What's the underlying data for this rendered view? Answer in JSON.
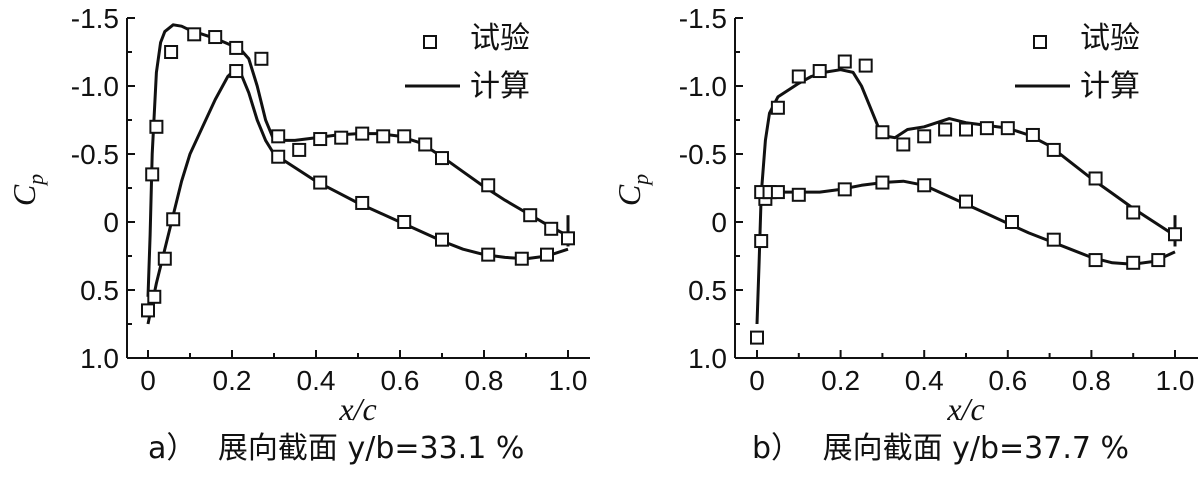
{
  "chart_data": [
    {
      "type": "line",
      "panel_label": "a）",
      "caption": "展向截面 y/b=33.1 %",
      "xlabel": "x/c",
      "ylabel": "Cp",
      "ylabel_main": "C",
      "ylabel_sub": "p",
      "xlim": [
        0,
        1.0
      ],
      "ylim": [
        1.0,
        -1.5
      ],
      "y_inverted": true,
      "xticks": [
        "0",
        "0.2",
        "0.4",
        "0.6",
        "0.8",
        "1.0"
      ],
      "yticks": [
        "-1.5",
        "-1.0",
        "-0.5",
        "0",
        "0.5",
        "1.0"
      ],
      "legend": {
        "position": "top-right",
        "entries": [
          "试验",
          "计算"
        ]
      },
      "series": [
        {
          "name": "试验",
          "kind": "markers",
          "x": [
            0.0,
            0.015,
            0.01,
            0.02,
            0.04,
            0.06,
            0.055,
            0.11,
            0.16,
            0.21,
            0.27,
            0.31,
            0.36,
            0.41,
            0.46,
            0.51,
            0.56,
            0.61,
            0.66,
            0.7,
            0.81,
            0.91,
            0.96,
            1.0,
            0.21,
            0.31,
            0.41,
            0.51,
            0.61,
            0.7,
            0.81,
            0.89,
            0.95
          ],
          "y": [
            0.65,
            0.55,
            -0.35,
            -0.7,
            0.27,
            -0.02,
            -1.25,
            -1.38,
            -1.36,
            -1.28,
            -1.2,
            -0.63,
            -0.53,
            -0.61,
            -0.62,
            -0.65,
            -0.63,
            -0.63,
            -0.57,
            -0.47,
            -0.27,
            -0.05,
            0.05,
            0.12,
            -1.11,
            -0.48,
            -0.29,
            -0.14,
            0.0,
            0.13,
            0.24,
            0.27,
            0.24
          ]
        },
        {
          "name": "计算",
          "kind": "line",
          "branches": [
            {
              "x": [
                0.0,
                0.005,
                0.01,
                0.02,
                0.03,
                0.04,
                0.06,
                0.08,
                0.1,
                0.13,
                0.16,
                0.19,
                0.22,
                0.24,
                0.26,
                0.28,
                0.3,
                0.35,
                0.4,
                0.45,
                0.5,
                0.55,
                0.6,
                0.65,
                0.7,
                0.75,
                0.8,
                0.85,
                0.9,
                0.95,
                0.98,
                1.0
              ],
              "y": [
                0.55,
                0.1,
                -0.5,
                -1.1,
                -1.32,
                -1.4,
                -1.45,
                -1.44,
                -1.41,
                -1.38,
                -1.35,
                -1.31,
                -1.27,
                -1.2,
                -1.0,
                -0.75,
                -0.6,
                -0.6,
                -0.62,
                -0.64,
                -0.65,
                -0.65,
                -0.63,
                -0.58,
                -0.48,
                -0.37,
                -0.26,
                -0.16,
                -0.07,
                0.02,
                0.07,
                0.1
              ]
            },
            {
              "x": [
                0.0,
                0.01,
                0.02,
                0.04,
                0.06,
                0.08,
                0.1,
                0.13,
                0.16,
                0.19,
                0.21,
                0.22,
                0.24,
                0.26,
                0.28,
                0.3,
                0.35,
                0.4,
                0.45,
                0.5,
                0.55,
                0.6,
                0.65,
                0.7,
                0.75,
                0.8,
                0.85,
                0.9,
                0.95,
                1.0
              ],
              "y": [
                0.75,
                0.6,
                0.45,
                0.2,
                -0.05,
                -0.3,
                -0.5,
                -0.7,
                -0.9,
                -1.07,
                -1.13,
                -1.1,
                -0.95,
                -0.75,
                -0.6,
                -0.5,
                -0.4,
                -0.3,
                -0.22,
                -0.14,
                -0.07,
                0.0,
                0.07,
                0.14,
                0.2,
                0.24,
                0.26,
                0.27,
                0.25,
                0.2
              ]
            }
          ]
        }
      ]
    },
    {
      "type": "line",
      "panel_label": "b）",
      "caption": "展向截面 y/b=37.7 %",
      "xlabel": "x/c",
      "ylabel": "Cp",
      "ylabel_main": "C",
      "ylabel_sub": "p",
      "xlim": [
        0,
        1.0
      ],
      "ylim": [
        1.0,
        -1.5
      ],
      "y_inverted": true,
      "xticks": [
        "0",
        "0.2",
        "0.4",
        "0.6",
        "0.8",
        "1.0"
      ],
      "yticks": [
        "-1.5",
        "-1.0",
        "-0.5",
        "0",
        "0.5",
        "1.0"
      ],
      "legend": {
        "position": "top-right",
        "entries": [
          "试验",
          "计算"
        ]
      },
      "series": [
        {
          "name": "试验",
          "kind": "markers",
          "x": [
            0.0,
            0.01,
            0.02,
            0.03,
            0.05,
            0.1,
            0.15,
            0.21,
            0.26,
            0.3,
            0.35,
            0.4,
            0.45,
            0.5,
            0.55,
            0.6,
            0.66,
            0.71,
            0.81,
            0.9,
            1.0,
            0.01,
            0.03,
            0.05,
            0.1,
            0.21,
            0.3,
            0.4,
            0.5,
            0.61,
            0.71,
            0.81,
            0.9,
            0.96
          ],
          "y": [
            0.85,
            0.14,
            -0.17,
            -0.22,
            -0.84,
            -1.07,
            -1.11,
            -1.18,
            -1.15,
            -0.66,
            -0.57,
            -0.63,
            -0.68,
            -0.68,
            -0.69,
            -0.69,
            -0.64,
            -0.53,
            -0.32,
            -0.07,
            0.09,
            -0.22,
            -0.22,
            -0.22,
            -0.2,
            -0.24,
            -0.29,
            -0.27,
            -0.15,
            0.0,
            0.13,
            0.28,
            0.3,
            0.28
          ]
        },
        {
          "name": "计算",
          "kind": "line",
          "branches": [
            {
              "x": [
                0.0,
                0.005,
                0.01,
                0.02,
                0.03,
                0.05,
                0.08,
                0.1,
                0.13,
                0.16,
                0.2,
                0.23,
                0.25,
                0.27,
                0.29,
                0.31,
                0.33,
                0.36,
                0.4,
                0.43,
                0.46,
                0.5,
                0.55,
                0.6,
                0.65,
                0.7,
                0.75,
                0.8,
                0.85,
                0.9,
                0.95,
                1.0
              ],
              "y": [
                0.75,
                0.3,
                -0.2,
                -0.6,
                -0.8,
                -0.92,
                -0.98,
                -1.02,
                -1.07,
                -1.1,
                -1.12,
                -1.1,
                -1.0,
                -0.85,
                -0.7,
                -0.63,
                -0.62,
                -0.68,
                -0.7,
                -0.73,
                -0.76,
                -0.73,
                -0.71,
                -0.69,
                -0.64,
                -0.56,
                -0.44,
                -0.32,
                -0.21,
                -0.1,
                0.0,
                0.1
              ]
            },
            {
              "x": [
                0.0,
                0.01,
                0.02,
                0.04,
                0.06,
                0.1,
                0.15,
                0.2,
                0.25,
                0.3,
                0.35,
                0.4,
                0.45,
                0.5,
                0.55,
                0.6,
                0.65,
                0.7,
                0.75,
                0.8,
                0.85,
                0.9,
                0.95,
                1.0
              ],
              "y": [
                -0.18,
                -0.2,
                -0.22,
                -0.22,
                -0.22,
                -0.22,
                -0.22,
                -0.24,
                -0.27,
                -0.29,
                -0.3,
                -0.27,
                -0.2,
                -0.13,
                -0.06,
                0.01,
                0.08,
                0.14,
                0.2,
                0.26,
                0.3,
                0.31,
                0.29,
                0.22
              ]
            }
          ]
        }
      ]
    }
  ]
}
